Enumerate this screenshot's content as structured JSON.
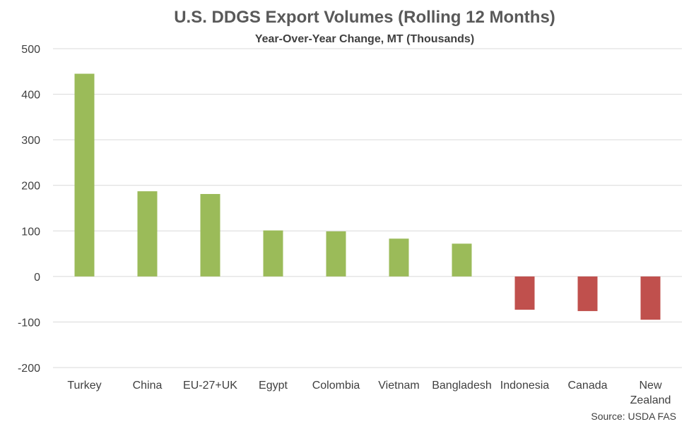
{
  "chart_data": {
    "type": "bar",
    "title": "U.S. DDGS Export Volumes (Rolling 12 Months)",
    "subtitle": "Year-Over-Year Change, MT (Thousands)",
    "xlabel": "",
    "ylabel": "",
    "ylim": [
      -200,
      500
    ],
    "yticks": [
      "500",
      "400",
      "300",
      "200",
      "100",
      "0",
      "-100",
      "-200"
    ],
    "ytick_values": [
      500,
      400,
      300,
      200,
      100,
      0,
      -100,
      -200
    ],
    "grid": true,
    "categories": [
      "Turkey",
      "China",
      "EU-27+UK",
      "Egypt",
      "Colombia",
      "Vietnam",
      "Bangladesh",
      "Indonesia",
      "Canada",
      "New Zealand"
    ],
    "category_lines": [
      [
        "Turkey"
      ],
      [
        "China"
      ],
      [
        "EU-27+UK"
      ],
      [
        "Egypt"
      ],
      [
        "Colombia"
      ],
      [
        "Vietnam"
      ],
      [
        "Bangladesh"
      ],
      [
        "Indonesia"
      ],
      [
        "Canada"
      ],
      [
        "New",
        "Zealand"
      ]
    ],
    "values": [
      445,
      187,
      181,
      101,
      99,
      83,
      72,
      -73,
      -76,
      -95
    ],
    "colors": {
      "positive": "#9bbb59",
      "negative": "#c0504d"
    },
    "source": "Source: USDA FAS"
  }
}
